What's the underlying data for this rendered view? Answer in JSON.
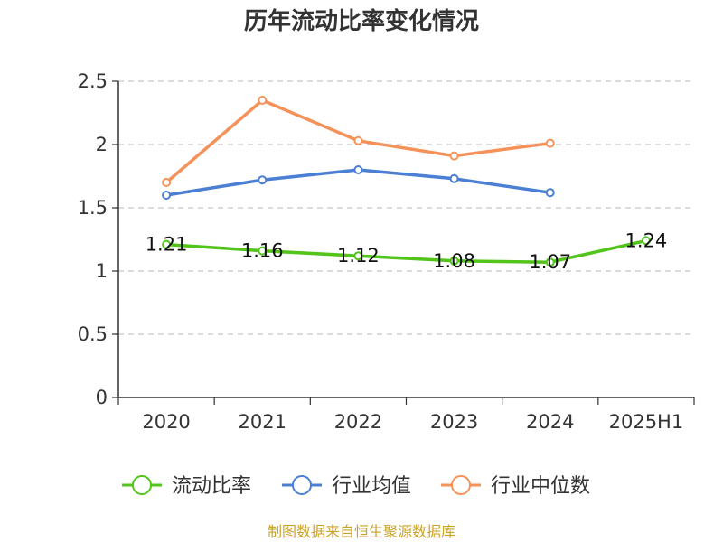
{
  "chart_data": {
    "type": "line",
    "title": "历年流动比率变化情况",
    "categories": [
      "2020",
      "2021",
      "2022",
      "2023",
      "2024",
      "2025H1"
    ],
    "ylim": [
      0,
      2.5
    ],
    "yticks": [
      0,
      0.5,
      1,
      1.5,
      2,
      2.5
    ],
    "ytick_labels": [
      "0",
      "0.5",
      "1",
      "1.5",
      "2",
      "2.5"
    ],
    "grid": true,
    "legend_position": "bottom",
    "series": [
      {
        "name": "流动比率",
        "color": "#52c41a",
        "values": [
          1.21,
          1.16,
          1.12,
          1.08,
          1.07,
          1.24
        ],
        "labels": [
          "1.21",
          "1.16",
          "1.12",
          "1.08",
          "1.07",
          "1.24"
        ]
      },
      {
        "name": "行业均值",
        "color": "#4a7fd4",
        "values": [
          1.6,
          1.72,
          1.8,
          1.73,
          1.62,
          null
        ]
      },
      {
        "name": "行业中位数",
        "color": "#f5925a",
        "values": [
          1.7,
          2.35,
          2.03,
          1.91,
          2.01,
          null
        ]
      }
    ],
    "source": "制图数据来自恒生聚源数据库"
  }
}
